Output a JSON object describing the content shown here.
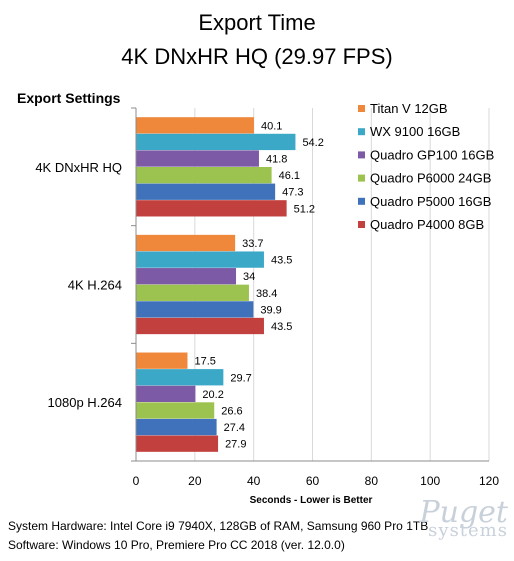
{
  "chart_data": {
    "type": "bar",
    "orientation": "horizontal",
    "title": "Export Time",
    "subtitle": "4K DNxHR HQ (29.97 FPS)",
    "y_axis_title": "Export Settings",
    "xlabel": "Seconds - Lower is Better",
    "xlim": [
      0,
      120
    ],
    "xticks": [
      0,
      20,
      40,
      60,
      80,
      100,
      120
    ],
    "grid": "vertical",
    "legend_position": "top-right",
    "categories": [
      "4K DNxHR HQ",
      "4K H.264",
      "1080p H.264"
    ],
    "series": [
      {
        "name": "Titan V 12GB",
        "color": "#F0883C",
        "values": [
          40.1,
          33.7,
          17.5
        ]
      },
      {
        "name": "WX 9100 16GB",
        "color": "#3BA8C8",
        "values": [
          54.2,
          43.5,
          29.7
        ]
      },
      {
        "name": "Quadro GP100 16GB",
        "color": "#7D5AA6",
        "values": [
          41.8,
          34,
          20.2
        ]
      },
      {
        "name": "Quadro P6000 24GB",
        "color": "#9CC250",
        "values": [
          46.1,
          38.4,
          26.6
        ]
      },
      {
        "name": "Quadro P5000 16GB",
        "color": "#3F72BA",
        "values": [
          47.3,
          39.9,
          27.4
        ]
      },
      {
        "name": "Quadro P4000 8GB",
        "color": "#C2403E",
        "values": [
          51.2,
          43.5,
          27.9
        ]
      }
    ]
  },
  "footer": {
    "line1": "System Hardware: Intel Core i9 7940X,  128GB of RAM, Samsung 960 Pro 1TB",
    "line2": "Software: Windows 10 Pro, Premiere Pro CC 2018  (ver. 12.0.0)"
  },
  "watermark": {
    "line1": "Puget",
    "line2": "systems"
  }
}
